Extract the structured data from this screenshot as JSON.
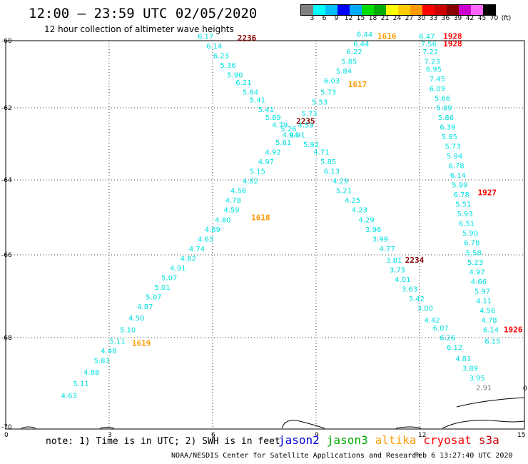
{
  "title": "12:00 — 23:59 UTC 02/05/2020",
  "subtitle": "12 hour collection of altimeter wave heights",
  "color_scale": {
    "labels": [
      "3",
      "6",
      "9",
      "12",
      "15",
      "18",
      "21",
      "24",
      "27",
      "30",
      "33",
      "36",
      "39",
      "42",
      "45",
      "70",
      "(ft)"
    ],
    "colors": [
      "#808080",
      "#00ffff",
      "#00bfff",
      "#0000ff",
      "#00aaff",
      "#00dd00",
      "#00aa00",
      "#ffff00",
      "#ffcc00",
      "#ff9900",
      "#ff0000",
      "#cc0000",
      "#880000",
      "#cc00cc",
      "#ff66ff",
      "#000000"
    ]
  },
  "axes": {
    "y_ticks": [
      "-60",
      "-62",
      "-64",
      "-66",
      "-68",
      "-70"
    ],
    "x_ticks": [
      "0",
      "3",
      "6",
      "9",
      "12",
      "15"
    ]
  },
  "chart_data": {
    "type": "scatter",
    "series": [
      {
        "name": "track_nw_se",
        "color": "#00e0e0",
        "points": [
          {
            "x": 5.55,
            "y": -59.95,
            "v": "6.17"
          },
          {
            "x": 5.8,
            "y": -60.2,
            "v": "6.14"
          },
          {
            "x": 6.0,
            "y": -60.45,
            "v": "6.23"
          },
          {
            "x": 6.2,
            "y": -60.7,
            "v": "5.36"
          },
          {
            "x": 6.4,
            "y": -60.95,
            "v": "5.90"
          },
          {
            "x": 6.65,
            "y": -61.15,
            "v": "6.21"
          },
          {
            "x": 6.85,
            "y": -61.4,
            "v": "5.64"
          },
          {
            "x": 7.05,
            "y": -61.6,
            "v": "5.41"
          },
          {
            "x": 7.3,
            "y": -61.85,
            "v": "5.41"
          },
          {
            "x": 7.5,
            "y": -62.05,
            "v": "5.89"
          },
          {
            "x": 7.7,
            "y": -62.25,
            "v": "4.79"
          },
          {
            "x": 7.95,
            "y": -62.35,
            "v": "5.26"
          },
          {
            "x": 8.2,
            "y": -62.5,
            "v": "4.91"
          },
          {
            "x": 8.6,
            "y": -62.75,
            "v": "5.92"
          },
          {
            "x": 8.9,
            "y": -62.95,
            "v": "4.71"
          },
          {
            "x": 9.1,
            "y": -63.2,
            "v": "5.85"
          },
          {
            "x": 9.2,
            "y": -63.45,
            "v": "6.13"
          },
          {
            "x": 9.45,
            "y": -63.7,
            "v": "4.29"
          },
          {
            "x": 9.55,
            "y": -63.95,
            "v": "5.21"
          },
          {
            "x": 9.8,
            "y": -64.2,
            "v": "4.25"
          },
          {
            "x": 10.0,
            "y": -64.45,
            "v": "4.23"
          },
          {
            "x": 10.2,
            "y": -64.7,
            "v": "4.29"
          },
          {
            "x": 10.4,
            "y": -64.95,
            "v": "3.96"
          },
          {
            "x": 10.6,
            "y": -65.2,
            "v": "3.99"
          },
          {
            "x": 10.8,
            "y": -65.45,
            "v": "4.77"
          },
          {
            "x": 11.0,
            "y": -65.75,
            "v": "3.81"
          },
          {
            "x": 11.1,
            "y": -66.0,
            "v": "3.75"
          },
          {
            "x": 11.25,
            "y": -66.25,
            "v": "4.01"
          },
          {
            "x": 11.45,
            "y": -66.5,
            "v": "3.63"
          },
          {
            "x": 11.65,
            "y": -66.75,
            "v": "3.42"
          },
          {
            "x": 11.9,
            "y": -67.0,
            "v": "3.00"
          },
          {
            "x": 12.1,
            "y": -67.3,
            "v": "4.42"
          },
          {
            "x": 12.35,
            "y": -67.5,
            "v": "6.07"
          },
          {
            "x": 12.55,
            "y": -67.75,
            "v": "6.26"
          },
          {
            "x": 12.75,
            "y": -68.0,
            "v": "6.12"
          },
          {
            "x": 13.0,
            "y": -68.3,
            "v": "4.81"
          },
          {
            "x": 13.2,
            "y": -68.55,
            "v": "3.89"
          },
          {
            "x": 13.4,
            "y": -68.8,
            "v": "3.95"
          },
          {
            "x": 13.6,
            "y": -69.05,
            "v": "2.91"
          }
        ]
      },
      {
        "name": "track_sw_ne",
        "color": "#00e0e0",
        "points": [
          {
            "x": 1.6,
            "y": -69.25,
            "v": "4.63"
          },
          {
            "x": 1.95,
            "y": -68.95,
            "v": "5.11"
          },
          {
            "x": 2.25,
            "y": -68.65,
            "v": "4.88"
          },
          {
            "x": 2.55,
            "y": -68.35,
            "v": "5.83"
          },
          {
            "x": 2.75,
            "y": -68.1,
            "v": "4.48"
          },
          {
            "x": 3.0,
            "y": -67.85,
            "v": "5.11"
          },
          {
            "x": 3.3,
            "y": -67.55,
            "v": "5.10"
          },
          {
            "x": 3.55,
            "y": -67.25,
            "v": "4.50"
          },
          {
            "x": 3.8,
            "y": -66.95,
            "v": "4.87"
          },
          {
            "x": 4.05,
            "y": -66.7,
            "v": "5.07"
          },
          {
            "x": 4.3,
            "y": -66.45,
            "v": "5.01"
          },
          {
            "x": 4.5,
            "y": -66.2,
            "v": "5.07"
          },
          {
            "x": 4.75,
            "y": -65.95,
            "v": "4.91"
          },
          {
            "x": 5.05,
            "y": -65.7,
            "v": "4.82"
          },
          {
            "x": 5.3,
            "y": -65.45,
            "v": "4.74"
          },
          {
            "x": 5.55,
            "y": -65.2,
            "v": "4.63"
          },
          {
            "x": 5.75,
            "y": -64.95,
            "v": "4.89"
          },
          {
            "x": 6.05,
            "y": -64.7,
            "v": "4.80"
          },
          {
            "x": 6.3,
            "y": -64.45,
            "v": "4.59"
          },
          {
            "x": 6.35,
            "y": -64.2,
            "v": "4.78"
          },
          {
            "x": 6.5,
            "y": -63.95,
            "v": "4.56"
          },
          {
            "x": 6.85,
            "y": -63.7,
            "v": "4.82"
          },
          {
            "x": 7.05,
            "y": -63.45,
            "v": "5.15"
          },
          {
            "x": 7.3,
            "y": -63.2,
            "v": "4.97"
          },
          {
            "x": 7.5,
            "y": -62.95,
            "v": "4.92"
          },
          {
            "x": 7.8,
            "y": -62.7,
            "v": "5.61"
          },
          {
            "x": 8.0,
            "y": -62.5,
            "v": "4.94"
          },
          {
            "x": 8.45,
            "y": -62.25,
            "v": "4.59"
          },
          {
            "x": 8.55,
            "y": -61.95,
            "v": "5.73"
          },
          {
            "x": 8.85,
            "y": -61.65,
            "v": "5.53"
          },
          {
            "x": 9.1,
            "y": -61.4,
            "v": "5.73"
          },
          {
            "x": 9.2,
            "y": -61.1,
            "v": "6.03"
          },
          {
            "x": 9.55,
            "y": -60.85,
            "v": "5.84"
          },
          {
            "x": 9.7,
            "y": -60.6,
            "v": "5.85"
          },
          {
            "x": 9.85,
            "y": -60.35,
            "v": "6.22"
          },
          {
            "x": 10.05,
            "y": -60.15,
            "v": "6.44"
          },
          {
            "x": 10.15,
            "y": -59.9,
            "v": "6.44"
          }
        ]
      },
      {
        "name": "track_right",
        "color": "#00e0e0",
        "points": [
          {
            "x": 11.95,
            "y": -59.95,
            "v": "6.47"
          },
          {
            "x": 12.0,
            "y": -60.15,
            "v": "7.56"
          },
          {
            "x": 12.05,
            "y": -60.35,
            "v": "7.22"
          },
          {
            "x": 12.1,
            "y": -60.6,
            "v": "7.23"
          },
          {
            "x": 12.15,
            "y": -60.8,
            "v": "6.95"
          },
          {
            "x": 12.25,
            "y": -61.05,
            "v": "7.45"
          },
          {
            "x": 12.25,
            "y": -61.3,
            "v": "6.09"
          },
          {
            "x": 12.4,
            "y": -61.55,
            "v": "5.66"
          },
          {
            "x": 12.45,
            "y": -61.8,
            "v": "5.89"
          },
          {
            "x": 12.5,
            "y": -62.05,
            "v": "5.86"
          },
          {
            "x": 12.55,
            "y": -62.3,
            "v": "6.39"
          },
          {
            "x": 12.6,
            "y": -62.55,
            "v": "5.85"
          },
          {
            "x": 12.7,
            "y": -62.8,
            "v": "5.73"
          },
          {
            "x": 12.75,
            "y": -63.05,
            "v": "5.94"
          },
          {
            "x": 12.8,
            "y": -63.3,
            "v": "6.78"
          },
          {
            "x": 12.85,
            "y": -63.55,
            "v": "6.14"
          },
          {
            "x": 12.9,
            "y": -63.8,
            "v": "5.99"
          },
          {
            "x": 12.95,
            "y": -64.05,
            "v": "6.78"
          },
          {
            "x": 13.0,
            "y": -64.3,
            "v": "5.51"
          },
          {
            "x": 13.05,
            "y": -64.55,
            "v": "5.93"
          },
          {
            "x": 13.1,
            "y": -64.8,
            "v": "6.51"
          },
          {
            "x": 13.2,
            "y": -65.05,
            "v": "5.90"
          },
          {
            "x": 13.25,
            "y": -65.3,
            "v": "6.78"
          },
          {
            "x": 13.3,
            "y": -65.55,
            "v": "5.58"
          },
          {
            "x": 13.35,
            "y": -65.8,
            "v": "5.23"
          },
          {
            "x": 13.4,
            "y": -66.05,
            "v": "4.97"
          },
          {
            "x": 13.45,
            "y": -66.3,
            "v": "4.66"
          },
          {
            "x": 13.55,
            "y": -66.55,
            "v": "5.97"
          },
          {
            "x": 13.6,
            "y": -66.8,
            "v": "4.11"
          },
          {
            "x": 13.7,
            "y": -67.05,
            "v": "4.56"
          },
          {
            "x": 13.75,
            "y": -67.3,
            "v": "4.78"
          },
          {
            "x": 13.8,
            "y": -67.55,
            "v": "6.14"
          },
          {
            "x": 13.85,
            "y": -67.85,
            "v": "6.15"
          }
        ]
      }
    ],
    "pass_labels": [
      {
        "x": 6.7,
        "y": -60.0,
        "text": "2236",
        "color": "#880000"
      },
      {
        "x": 10.75,
        "y": -59.95,
        "text": "1616",
        "color": "#ff9900"
      },
      {
        "x": 9.9,
        "y": -61.2,
        "text": "1617",
        "color": "#ff9900"
      },
      {
        "x": 8.4,
        "y": -62.15,
        "text": "2235",
        "color": "#880000"
      },
      {
        "x": 7.1,
        "y": -64.65,
        "text": "1618",
        "color": "#ff9900"
      },
      {
        "x": 3.65,
        "y": -67.9,
        "text": "1619",
        "color": "#ff9900"
      },
      {
        "x": 11.55,
        "y": -65.75,
        "text": "2234",
        "color": "#880000"
      },
      {
        "x": 12.65,
        "y": -59.95,
        "text": "1928",
        "color": "#ff0000"
      },
      {
        "x": 12.65,
        "y": -60.15,
        "text": "1928",
        "color": "#ff0000"
      },
      {
        "x": 13.65,
        "y": -64.0,
        "text": "1927",
        "color": "#ff0000"
      },
      {
        "x": 14.4,
        "y": -67.55,
        "text": "1926",
        "color": "#ff0000"
      }
    ],
    "xlim": [
      0,
      15
    ],
    "ylim": [
      -70,
      -60
    ]
  },
  "footnote": "note: 1) Time is in UTC; 2) SWH is in feet",
  "legend": [
    {
      "label": "jason2",
      "color": "#0000dd"
    },
    {
      "label": "jason3",
      "color": "#00aa00"
    },
    {
      "label": "altika",
      "color": "#ff9900"
    },
    {
      "label": "cryosat",
      "color": "#ff0000"
    },
    {
      "label": "s3a",
      "color": "#cc0000"
    }
  ],
  "credit": "NOAA/NESDIS Center for Satellite Applications and Research",
  "timestamp": "Feb  6 13:27:40 UTC 2020",
  "edge_label": "0"
}
